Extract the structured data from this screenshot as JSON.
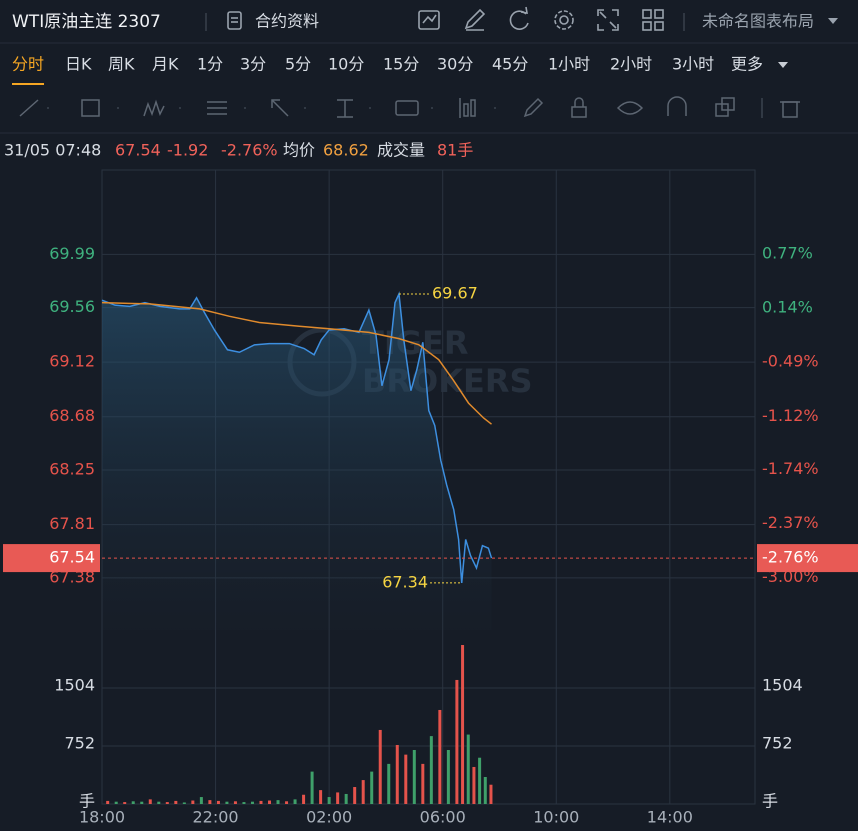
{
  "header": {
    "title": "WTI原油主连 2307",
    "info_link": "合约资料",
    "layout_name": "未命名图表布局"
  },
  "tabs": [
    "分时",
    "日K",
    "周K",
    "月K",
    "1分",
    "3分",
    "5分",
    "10分",
    "15分",
    "30分",
    "45分",
    "1小时",
    "2小时",
    "3小时",
    "更多"
  ],
  "active_tab": 0,
  "info": {
    "time": "31/05 07:48",
    "price": 67.54,
    "change": -1.92,
    "change_pct": "-2.76%",
    "avg_label": "均价",
    "avg": 68.62,
    "volume_label": "成交量",
    "volume": "81手"
  },
  "watermark": [
    "TIGER",
    "BROKERS"
  ],
  "chart_data": {
    "type": "line",
    "xlim": [
      0,
      23
    ],
    "xticks": [
      {
        "value": 0,
        "label": "18:00"
      },
      {
        "value": 4,
        "label": "22:00"
      },
      {
        "value": 8,
        "label": "02:00"
      },
      {
        "value": 12,
        "label": "06:00"
      },
      {
        "value": 16,
        "label": "10:00"
      },
      {
        "value": 20,
        "label": "14:00"
      }
    ],
    "ylim": [
      66.96,
      70.67
    ],
    "yticks": [
      69.99,
      69.56,
      69.12,
      68.68,
      68.25,
      67.81,
      67.38
    ],
    "y2lim": [
      -3.61,
      1.75
    ],
    "y2ticks": [
      {
        "value": 0.77,
        "label": "0.77%"
      },
      {
        "value": 0.14,
        "label": "0.14%"
      },
      {
        "value": -0.49,
        "label": "-0.49%"
      },
      {
        "value": -1.12,
        "label": "-1.12%"
      },
      {
        "value": -1.74,
        "label": "-1.74%"
      },
      {
        "value": -2.37,
        "label": "-2.37%"
      },
      {
        "value": -3.0,
        "label": "-3.00%"
      }
    ],
    "grid": true,
    "series": [
      {
        "color": "#3d8fe0",
        "x": [
          0,
          0.46,
          0.98,
          1.51,
          2.04,
          2.74,
          3.09,
          3.33,
          3.61,
          3.96,
          4.42,
          4.84,
          5.37,
          5.89,
          6.6,
          7.12,
          7.47,
          7.72,
          8.0,
          8.53,
          9.05,
          9.4,
          9.65,
          9.86,
          10.11,
          10.32,
          10.46,
          10.63,
          10.88,
          11.09,
          11.3,
          11.51,
          11.72,
          11.93,
          12.14,
          12.39,
          12.56,
          12.67,
          12.81,
          12.98,
          13.19,
          13.4,
          13.61,
          13.72
        ],
        "values": [
          69.62,
          69.58,
          69.57,
          69.6,
          69.57,
          69.55,
          69.55,
          69.64,
          69.52,
          69.38,
          69.22,
          69.2,
          69.26,
          69.27,
          69.27,
          69.23,
          69.18,
          69.3,
          69.38,
          69.39,
          69.36,
          69.54,
          69.34,
          68.93,
          69.14,
          69.6,
          69.67,
          69.3,
          68.89,
          69.06,
          69.28,
          68.73,
          68.61,
          68.33,
          68.13,
          67.93,
          67.69,
          67.34,
          67.69,
          67.56,
          67.46,
          67.64,
          67.62,
          67.54
        ]
      },
      {
        "color": "#e08a2c",
        "x": [
          0,
          1.68,
          3.44,
          4.49,
          5.54,
          6.95,
          8.0,
          9.4,
          10.46,
          11.16,
          11.86,
          12.39,
          12.91,
          13.44,
          13.72
        ],
        "values": [
          69.6,
          69.59,
          69.55,
          69.49,
          69.44,
          69.41,
          69.39,
          69.36,
          69.31,
          69.26,
          69.14,
          68.97,
          68.79,
          68.67,
          68.62
        ]
      }
    ],
    "high": {
      "value": 69.67,
      "x": 10.46
    },
    "low": {
      "value": 67.34,
      "x": 12.67
    },
    "volume": {
      "vlim": [
        0,
        2126
      ],
      "vticks": [
        {
          "value": 0,
          "label": "手"
        },
        752,
        1504
      ],
      "x": [
        0.2,
        0.5,
        0.8,
        1.1,
        1.4,
        1.7,
        2.0,
        2.3,
        2.6,
        2.9,
        3.2,
        3.5,
        3.8,
        4.1,
        4.4,
        4.7,
        5.0,
        5.3,
        5.6,
        5.9,
        6.2,
        6.5,
        6.8,
        7.1,
        7.4,
        7.7,
        8.0,
        8.3,
        8.6,
        8.9,
        9.2,
        9.5,
        9.8,
        10.1,
        10.4,
        10.7,
        11.0,
        11.3,
        11.6,
        11.9,
        12.2,
        12.5,
        12.7,
        12.9,
        13.1,
        13.3,
        13.5,
        13.7
      ],
      "values": [
        40,
        30,
        25,
        35,
        30,
        60,
        30,
        25,
        40,
        20,
        45,
        90,
        50,
        40,
        30,
        35,
        25,
        30,
        40,
        45,
        50,
        35,
        60,
        120,
        420,
        180,
        90,
        150,
        130,
        220,
        310,
        420,
        960,
        520,
        765,
        640,
        700,
        520,
        880,
        1219,
        700,
        1608,
        2061,
        900,
        480,
        600,
        350,
        250
      ],
      "colors": [
        "#e5534b",
        "#3fa06a",
        "#e5534b",
        "#3fa06a",
        "#3fa06a",
        "#e5534b",
        "#3fa06a",
        "#e5534b",
        "#e5534b",
        "#3fa06a",
        "#e5534b",
        "#3fa06a",
        "#e5534b",
        "#e5534b",
        "#3fa06a",
        "#e5534b",
        "#3fa06a",
        "#3fa06a",
        "#e5534b",
        "#e5534b",
        "#3fa06a",
        "#e5534b",
        "#3fa06a",
        "#e5534b",
        "#3fa06a",
        "#e5534b",
        "#3fa06a",
        "#e5534b",
        "#3fa06a",
        "#e5534b",
        "#e5534b",
        "#3fa06a",
        "#e5534b",
        "#3fa06a",
        "#e5534b",
        "#e5534b",
        "#3fa06a",
        "#e5534b",
        "#3fa06a",
        "#e5534b",
        "#3fa06a",
        "#e5534b",
        "#e5534b",
        "#3fa06a",
        "#e5534b",
        "#3fa06a",
        "#3fa06a",
        "#e5534b"
      ]
    }
  }
}
